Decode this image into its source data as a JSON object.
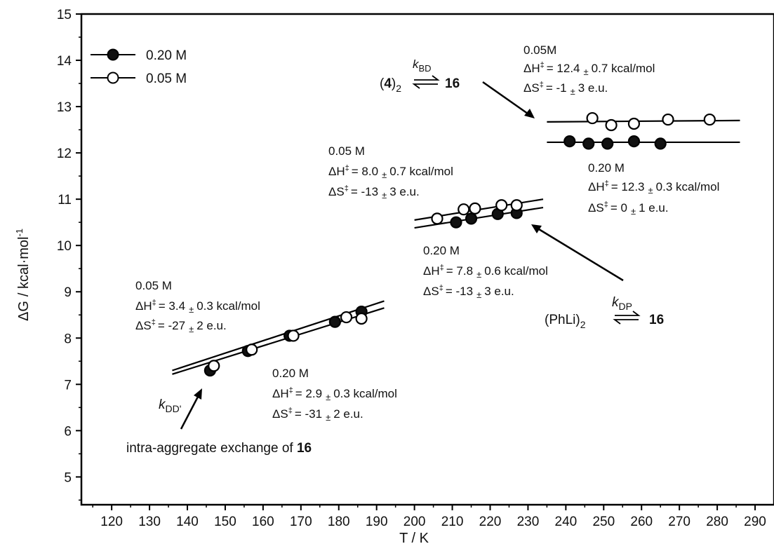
{
  "chart_data": {
    "type": "scatter",
    "xlabel": "T / K",
    "ylabel_main": "ΔG",
    "ylabel_units": "/ kcal·mol",
    "ylabel_exp": "-1",
    "xlim": [
      112,
      295
    ],
    "ylim": [
      4.4,
      15
    ],
    "x_ticks": [
      120,
      130,
      140,
      150,
      160,
      170,
      180,
      190,
      200,
      210,
      220,
      230,
      240,
      250,
      260,
      270,
      280,
      290
    ],
    "y_ticks": [
      5,
      6,
      7,
      8,
      9,
      10,
      11,
      12,
      13,
      14,
      15
    ],
    "legend": {
      "placement": "top-left",
      "entries": [
        {
          "label": "0.20 M",
          "marker": "filled-circle"
        },
        {
          "label": "0.05 M",
          "marker": "open-circle"
        }
      ]
    },
    "series": [
      {
        "name": "0.20 M",
        "group": "kDD'",
        "filled": true,
        "x": [
          146,
          156,
          167,
          179,
          186
        ],
        "y": [
          7.3,
          7.72,
          8.05,
          8.35,
          8.57
        ]
      },
      {
        "name": "0.05 M",
        "group": "kDD'",
        "filled": false,
        "x": [
          147,
          157,
          168,
          182,
          186
        ],
        "y": [
          7.4,
          7.75,
          8.05,
          8.45,
          8.42
        ]
      },
      {
        "name": "0.20 M",
        "group": "kDP",
        "filled": true,
        "x": [
          211,
          215,
          222,
          227
        ],
        "y": [
          10.5,
          10.58,
          10.68,
          10.7
        ]
      },
      {
        "name": "0.05 M",
        "group": "kDP",
        "filled": false,
        "x": [
          206,
          213,
          216,
          223,
          227
        ],
        "y": [
          10.58,
          10.78,
          10.8,
          10.87,
          10.87
        ]
      },
      {
        "name": "0.20 M",
        "group": "kBD",
        "filled": true,
        "x": [
          241,
          246,
          251,
          258,
          265
        ],
        "y": [
          12.25,
          12.2,
          12.2,
          12.25,
          12.2
        ]
      },
      {
        "name": "0.05 M",
        "group": "kBD",
        "filled": false,
        "x": [
          247,
          252,
          258,
          267,
          278
        ],
        "y": [
          12.75,
          12.6,
          12.63,
          12.72,
          12.72
        ]
      }
    ],
    "fit_lines": [
      {
        "x": [
          136,
          192
        ],
        "y": [
          7.3,
          8.8
        ]
      },
      {
        "x": [
          136,
          192
        ],
        "y": [
          7.22,
          8.65
        ]
      },
      {
        "x": [
          200,
          234
        ],
        "y": [
          10.55,
          11.0
        ]
      },
      {
        "x": [
          200,
          234
        ],
        "y": [
          10.38,
          10.82
        ]
      },
      {
        "x": [
          235,
          286
        ],
        "y": [
          12.67,
          12.7
        ]
      },
      {
        "x": [
          235,
          286
        ],
        "y": [
          12.23,
          12.23
        ]
      }
    ],
    "annotations": {
      "kbd_05": {
        "conc": "0.05M",
        "dh_val": "= 12.4",
        "dh_err": "0.7 kcal/mol",
        "ds_val": "= -1",
        "ds_err": "3 e.u."
      },
      "kbd_20": {
        "conc": "0.20 M",
        "dh_val": "= 12.3",
        "dh_err": "0.3 kcal/mol",
        "ds_val": "= 0",
        "ds_err": "1 e.u."
      },
      "kdp_05": {
        "conc": "0.05 M",
        "dh_val": "= 8.0",
        "dh_err": "0.7 kcal/mol",
        "ds_val": "= -13",
        "ds_err": "3 e.u."
      },
      "kdp_20": {
        "conc": "0.20 M",
        "dh_val": "= 7.8",
        "dh_err": "0.6 kcal/mol",
        "ds_val": "= -13",
        "ds_err": "3 e.u."
      },
      "kdd_05": {
        "conc": "0.05 M",
        "dh_val": "= 3.4",
        "dh_err": "0.3 kcal/mol",
        "ds_val": "= -27",
        "ds_err": "2 e.u."
      },
      "kdd_20": {
        "conc": "0.20 M",
        "dh_val": "= 2.9",
        "dh_err": "0.3 kcal/mol",
        "ds_val": "= -31",
        "ds_err": "2 e.u."
      }
    },
    "symbols": {
      "delta": "Δ",
      "h": "H",
      "s": "S",
      "dagger": "‡",
      "pm": "±"
    },
    "equilibria": {
      "kbd": {
        "k": "k",
        "sub": "BD",
        "left_open": "(",
        "left_bold": "4",
        "left_close": ")",
        "left_sub": "2",
        "right": "16"
      },
      "kdp": {
        "k": "k",
        "sub": "DP",
        "left": "(PhLi)",
        "left_sub": "2",
        "right": "16"
      }
    },
    "kdd_label": {
      "k": "k",
      "sub": "DD'"
    },
    "exchange_note": {
      "text": "intra-aggregate exchange of ",
      "bold": "16"
    }
  }
}
